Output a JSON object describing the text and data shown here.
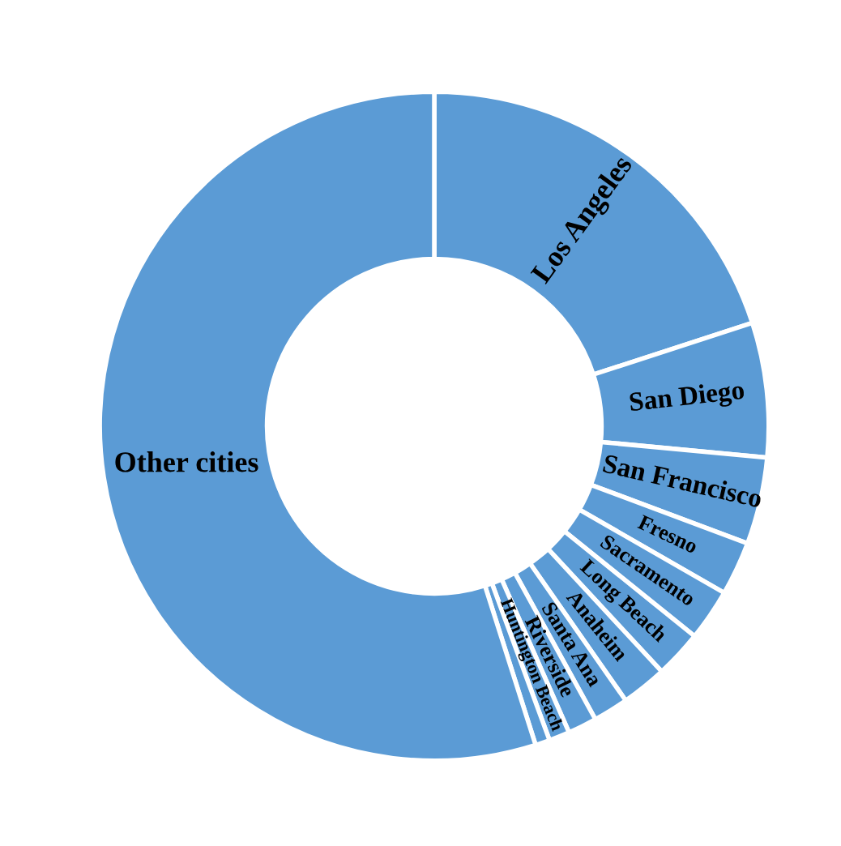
{
  "chart_data": {
    "type": "donut",
    "categories": [
      "Los Angeles",
      "San Diego",
      "San Francisco",
      "Fresno",
      "Sacramento",
      "Long Beach",
      "Anaheim",
      "Santa Ana",
      "Riverside",
      "Huntington Beach",
      null,
      "Other cities"
    ],
    "values": [
      20.0,
      6.5,
      4.2,
      2.6,
      2.5,
      2.3,
      2.2,
      1.7,
      1.4,
      1.0,
      0.7,
      54.9
    ],
    "colors": [
      "#5b9bd5",
      "#5b9bd5",
      "#5b9bd5",
      "#5b9bd5",
      "#5b9bd5",
      "#5b9bd5",
      "#5b9bd5",
      "#5b9bd5",
      "#5b9bd5",
      "#5b9bd5",
      "#5b9bd5",
      "#5b9bd5"
    ],
    "legend": false
  }
}
